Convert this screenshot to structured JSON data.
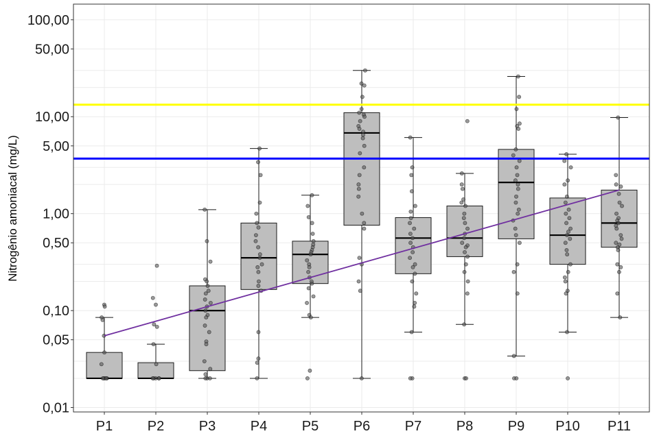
{
  "chart_data": {
    "type": "box",
    "ylabel": "Nitrogênio amoniacal (mg/L)",
    "xlabel": "",
    "y_scale": "log",
    "ylim": [
      0.009,
      145
    ],
    "y_tick_labels": [
      {
        "value": 0.01,
        "label": "0,01"
      },
      {
        "value": 0.05,
        "label": "0,05"
      },
      {
        "value": 0.1,
        "label": "0,10"
      },
      {
        "value": 0.5,
        "label": "0,50"
      },
      {
        "value": 1,
        "label": "1,00"
      },
      {
        "value": 5,
        "label": "5,00"
      },
      {
        "value": 10,
        "label": "10,00"
      },
      {
        "value": 50,
        "label": "50,00"
      },
      {
        "value": 100,
        "label": "100,00"
      }
    ],
    "y_gridlines": [
      0.01,
      0.02,
      0.03,
      0.05,
      0.1,
      0.2,
      0.3,
      0.5,
      1,
      2,
      3,
      5,
      10,
      20,
      30,
      50,
      100
    ],
    "categories": [
      "P1",
      "P2",
      "P3",
      "P4",
      "P5",
      "P6",
      "P7",
      "P8",
      "P9",
      "P10",
      "P11"
    ],
    "boxes": [
      {
        "category": "P1",
        "whisker_low": 0.02,
        "q1": 0.02,
        "median": 0.02,
        "q3": 0.037,
        "whisker_high": 0.085
      },
      {
        "category": "P2",
        "whisker_low": 0.02,
        "q1": 0.02,
        "median": 0.02,
        "q3": 0.029,
        "whisker_high": 0.045
      },
      {
        "category": "P3",
        "whisker_low": 0.02,
        "q1": 0.024,
        "median": 0.1,
        "q3": 0.18,
        "whisker_high": 1.1
      },
      {
        "category": "P4",
        "whisker_low": 0.02,
        "q1": 0.165,
        "median": 0.35,
        "q3": 0.8,
        "whisker_high": 4.7
      },
      {
        "category": "P5",
        "whisker_low": 0.085,
        "q1": 0.19,
        "median": 0.38,
        "q3": 0.52,
        "whisker_high": 1.55
      },
      {
        "category": "P6",
        "whisker_low": 0.02,
        "q1": 0.76,
        "median": 6.8,
        "q3": 11,
        "whisker_high": 30
      },
      {
        "category": "P7",
        "whisker_low": 0.06,
        "q1": 0.24,
        "median": 0.56,
        "q3": 0.91,
        "whisker_high": 6.1
      },
      {
        "category": "P8",
        "whisker_low": 0.072,
        "q1": 0.36,
        "median": 0.56,
        "q3": 1.2,
        "whisker_high": 2.6
      },
      {
        "category": "P9",
        "whisker_low": 0.034,
        "q1": 0.55,
        "median": 2.1,
        "q3": 4.6,
        "whisker_high": 26
      },
      {
        "category": "P10",
        "whisker_low": 0.06,
        "q1": 0.3,
        "median": 0.6,
        "q3": 1.45,
        "whisker_high": 4.1
      },
      {
        "category": "P11",
        "whisker_low": 0.085,
        "q1": 0.45,
        "median": 0.8,
        "q3": 1.75,
        "whisker_high": 9.8
      }
    ],
    "points": [
      {
        "category": "P1",
        "values": [
          0.115,
          0.11,
          0.085,
          0.08,
          0.055,
          0.037,
          0.028,
          0.02,
          0.02,
          0.02,
          0.02,
          0.02
        ]
      },
      {
        "category": "P2",
        "values": [
          0.29,
          0.135,
          0.115,
          0.072,
          0.068,
          0.045,
          0.028,
          0.02,
          0.02,
          0.02,
          0.02,
          0.02
        ]
      },
      {
        "category": "P3",
        "values": [
          1.1,
          0.52,
          0.32,
          0.21,
          0.2,
          0.18,
          0.16,
          0.15,
          0.13,
          0.12,
          0.11,
          0.1,
          0.09,
          0.085,
          0.07,
          0.06,
          0.048,
          0.045,
          0.03,
          0.025,
          0.022,
          0.02,
          0.02,
          0.02
        ]
      },
      {
        "category": "P4",
        "values": [
          4.7,
          3.4,
          2.5,
          1.3,
          1.0,
          0.8,
          0.72,
          0.6,
          0.52,
          0.45,
          0.38,
          0.35,
          0.3,
          0.28,
          0.25,
          0.2,
          0.18,
          0.16,
          0.06,
          0.032,
          0.029,
          0.02
        ]
      },
      {
        "category": "P5",
        "values": [
          1.55,
          1.2,
          0.92,
          0.8,
          0.62,
          0.52,
          0.48,
          0.45,
          0.42,
          0.4,
          0.38,
          0.33,
          0.3,
          0.28,
          0.25,
          0.22,
          0.2,
          0.19,
          0.17,
          0.14,
          0.12,
          0.09,
          0.085,
          0.024,
          0.02
        ]
      },
      {
        "category": "P6",
        "values": [
          30,
          22,
          21,
          16,
          12,
          11,
          10.5,
          10,
          9,
          8,
          7.5,
          7,
          6.5,
          6,
          5,
          4.2,
          3,
          2.5,
          2.0,
          1.8,
          1.5,
          1.0,
          0.8,
          0.7,
          0.35,
          0.3,
          0.2,
          0.16,
          0.02
        ]
      },
      {
        "category": "P7",
        "values": [
          6.1,
          3.0,
          2.5,
          1.7,
          1.2,
          1.05,
          0.9,
          0.8,
          0.7,
          0.62,
          0.56,
          0.5,
          0.45,
          0.4,
          0.35,
          0.3,
          0.28,
          0.24,
          0.2,
          0.15,
          0.12,
          0.11,
          0.06,
          0.02,
          0.02
        ]
      },
      {
        "category": "P8",
        "values": [
          9,
          2.6,
          2.0,
          1.8,
          1.4,
          1.3,
          1.2,
          1.0,
          0.9,
          0.8,
          0.7,
          0.62,
          0.56,
          0.5,
          0.47,
          0.45,
          0.4,
          0.36,
          0.3,
          0.25,
          0.2,
          0.15,
          0.072,
          0.02,
          0.02
        ]
      },
      {
        "category": "P9",
        "values": [
          26,
          16,
          12,
          8.5,
          8,
          7.5,
          4.6,
          4.0,
          3.5,
          3.0,
          2.5,
          2.2,
          2.0,
          1.8,
          1.5,
          1.3,
          1.1,
          1.0,
          0.85,
          0.7,
          0.6,
          0.5,
          0.3,
          0.25,
          0.15,
          0.034,
          0.02,
          0.02
        ]
      },
      {
        "category": "P10",
        "values": [
          4.1,
          3.5,
          3.0,
          2.2,
          2.0,
          1.5,
          1.3,
          1.1,
          1.0,
          0.9,
          0.8,
          0.7,
          0.65,
          0.6,
          0.55,
          0.5,
          0.42,
          0.38,
          0.3,
          0.25,
          0.22,
          0.2,
          0.16,
          0.15,
          0.06,
          0.02
        ]
      },
      {
        "category": "P11",
        "values": [
          9.8,
          2.5,
          2.0,
          1.9,
          1.6,
          1.3,
          1.2,
          1.0,
          0.9,
          0.85,
          0.8,
          0.75,
          0.7,
          0.6,
          0.55,
          0.5,
          0.48,
          0.45,
          0.42,
          0.3,
          0.28,
          0.25,
          0.15,
          0.085
        ]
      }
    ],
    "reference_lines": [
      {
        "value": 13.3,
        "color": "#ffff00"
      },
      {
        "value": 3.7,
        "color": "#0000ff"
      }
    ],
    "trend_line": {
      "from_category": "P1",
      "from_value": 0.055,
      "to_category": "P11",
      "to_value": 1.75,
      "color": "#7030a0"
    },
    "grid": true,
    "colors": {
      "box_fill": "#bebebe",
      "box_stroke": "#1a1a1a",
      "point_fill": "#595959",
      "grid": "#ebebeb",
      "panel_border": "#333333"
    }
  }
}
